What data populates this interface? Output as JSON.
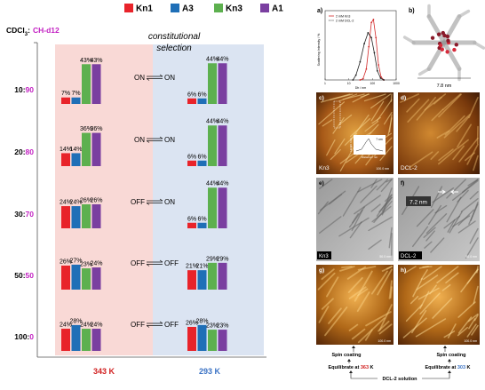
{
  "solvent": {
    "prefix": "CDCl",
    "sub": "3",
    "colon": ":",
    "suffix": "CH-d12"
  },
  "legend": [
    {
      "name": "Kn1",
      "color": "#e8232a"
    },
    {
      "name": "A3",
      "color": "#1f6fb7"
    },
    {
      "name": "Kn3",
      "color": "#5db04f"
    },
    {
      "name": "A1",
      "color": "#7a3fa0"
    }
  ],
  "selection_label": {
    "line1": "constitutional",
    "line2": "selection"
  },
  "temperatures": {
    "left": "343 K",
    "right": "293 K"
  },
  "chart_data": {
    "type": "bar",
    "series_order": [
      "Kn1",
      "A3",
      "Kn3",
      "A1"
    ],
    "rows": [
      {
        "ratio_a": "10",
        "ratio_b": "90",
        "hot": [
          7,
          7,
          43,
          43
        ],
        "cold": [
          6,
          6,
          44,
          44
        ],
        "state_left": "ON",
        "state_right": "ON"
      },
      {
        "ratio_a": "20",
        "ratio_b": "80",
        "hot": [
          14,
          14,
          36,
          36
        ],
        "cold": [
          6,
          6,
          44,
          44
        ],
        "state_left": "ON",
        "state_right": "ON"
      },
      {
        "ratio_a": "30",
        "ratio_b": "70",
        "hot": [
          24,
          24,
          26,
          26
        ],
        "cold": [
          6,
          6,
          44,
          44
        ],
        "state_left": "OFF",
        "state_right": "ON"
      },
      {
        "ratio_a": "50",
        "ratio_b": "50",
        "hot": [
          26,
          27,
          23,
          24
        ],
        "cold": [
          21,
          21,
          29,
          29
        ],
        "state_left": "OFF",
        "state_right": "OFF"
      },
      {
        "ratio_a": "100",
        "ratio_b": "0",
        "hot": [
          24,
          28,
          24,
          24
        ],
        "cold": [
          26,
          28,
          23,
          23
        ],
        "state_left": "OFF",
        "state_right": "OFF"
      }
    ],
    "value_suffix": "%",
    "ymax": 50
  },
  "right_panel": {
    "panel_a": {
      "letter": "a)",
      "ylabel": "Scattering Intensity / %",
      "xlabel": "Dh / nm",
      "legend": [
        "2 mM Kn3",
        "2 mM DCL-2"
      ],
      "xticks": [
        "1",
        "10",
        "100",
        "1000"
      ],
      "series": [
        {
          "name": "2 mM Kn3",
          "x": [
            30,
            40,
            55,
            70,
            90,
            110,
            140,
            180,
            230,
            300
          ],
          "y": [
            0,
            2,
            18,
            55,
            95,
            100,
            70,
            25,
            5,
            0
          ]
        },
        {
          "name": "2 mM DCL-2",
          "x": [
            15,
            20,
            30,
            45,
            65,
            90,
            120,
            160,
            220,
            300
          ],
          "y": [
            0,
            8,
            30,
            60,
            78,
            70,
            45,
            15,
            3,
            0
          ]
        }
      ],
      "colors": [
        "#d22a2a",
        "#222222"
      ]
    },
    "panel_b": {
      "letter": "b)",
      "scale": "7.8 nm"
    },
    "panel_c": {
      "letter": "c)",
      "label": "Kn3",
      "scale": "100.0 nm",
      "inset_label": "7 nm",
      "inset_xlabel": "Distance / nm",
      "inset_ylabel": "Height / nm"
    },
    "panel_d": {
      "letter": "d)",
      "label": "DCL-2"
    },
    "panel_e": {
      "letter": "e)",
      "label": "Kn3",
      "scale": "50.0 nm"
    },
    "panel_f": {
      "letter": "f)",
      "label": "DCL-2",
      "size": "7.2 nm",
      "scale": "50.0 nm"
    },
    "panel_g": {
      "letter": "g)",
      "scale": "100.0 nm"
    },
    "panel_h": {
      "letter": "h)",
      "scale": "100.0 nm"
    },
    "flow": {
      "spin_left": "Spin coating",
      "spin_right": "Spin coating",
      "eq_left_pre": "Equilibrate at ",
      "eq_left_temp": "363",
      "eq_right_pre": "Equilibrate at ",
      "eq_right_temp": "303",
      "eq_unit": " K",
      "solution": "DCL-2 solution"
    }
  }
}
